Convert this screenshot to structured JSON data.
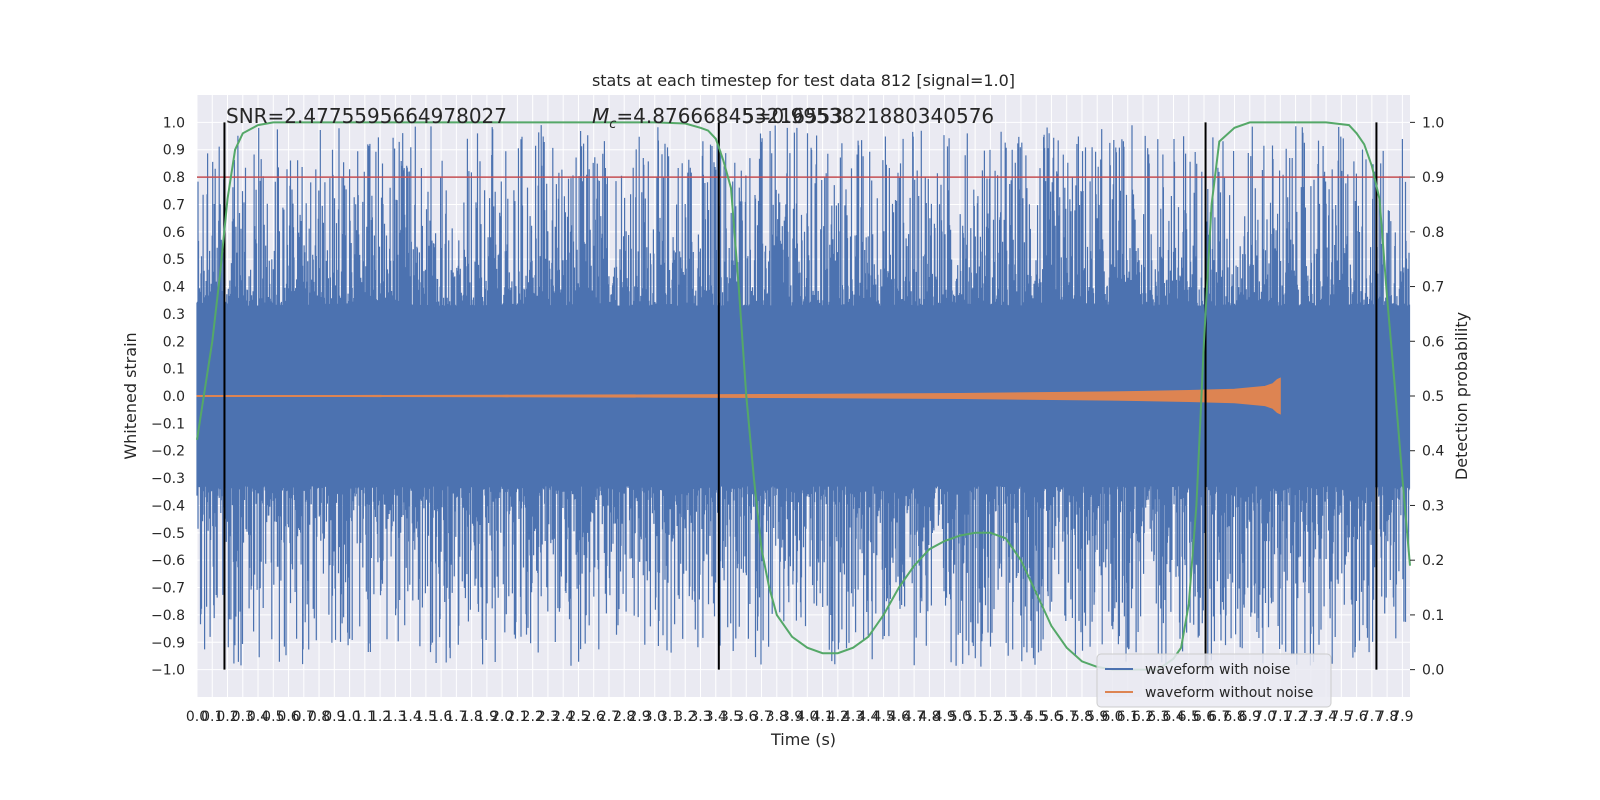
{
  "chart_data": {
    "type": "line",
    "title": "stats at each timestep for test data 812 [signal=1.0]",
    "xlabel": "Time (s)",
    "ylabel": "Whitened strain",
    "y2label": "Detection probability",
    "annotations": {
      "snr": "SNR=2.4775595664978027",
      "mc_symbol": "M",
      "mc_subscript": "c",
      "mc_value": "=4.876668453216553",
      "overlap": "5=0.9953821880340576"
    },
    "xlim": [
      0.0,
      7.95
    ],
    "xticks": [
      "0.0",
      "0.1",
      "0.2",
      "0.3",
      "0.4",
      "0.5",
      "0.6",
      "0.7",
      "0.8",
      "0.9",
      "1.0",
      "1.1",
      "1.2",
      "1.3",
      "1.4",
      "1.5",
      "1.6",
      "1.7",
      "1.8",
      "1.9",
      "2.0",
      "2.1",
      "2.2",
      "2.3",
      "2.4",
      "2.5",
      "2.6",
      "2.7",
      "2.8",
      "2.9",
      "3.0",
      "3.1",
      "3.2",
      "3.3",
      "3.4",
      "3.5",
      "3.6",
      "3.7",
      "3.8",
      "3.9",
      "4.0",
      "4.1",
      "4.2",
      "4.3",
      "4.4",
      "4.5",
      "4.6",
      "4.7",
      "4.8",
      "4.9",
      "5.0",
      "5.1",
      "5.2",
      "5.3",
      "5.4",
      "5.5",
      "5.6",
      "5.7",
      "5.8",
      "5.9",
      "6.0",
      "6.1",
      "6.2",
      "6.3",
      "6.4",
      "6.5",
      "6.6",
      "6.7",
      "6.8",
      "6.9",
      "7.0",
      "7.1",
      "7.2",
      "7.3",
      "7.4",
      "7.5",
      "7.6",
      "7.7",
      "7.8",
      "7.9"
    ],
    "ylim": [
      -1.1,
      1.1
    ],
    "yticks": [
      "−1.0",
      "−0.9",
      "−0.8",
      "−0.7",
      "−0.6",
      "−0.5",
      "−0.4",
      "−0.3",
      "−0.2",
      "−0.1",
      "0.0",
      "0.1",
      "0.2",
      "0.3",
      "0.4",
      "0.5",
      "0.6",
      "0.7",
      "0.8",
      "0.9",
      "1.0"
    ],
    "y2lim": [
      -0.05,
      1.05
    ],
    "y2ticks": [
      "0.0",
      "0.1",
      "0.2",
      "0.3",
      "0.4",
      "0.5",
      "0.6",
      "0.7",
      "0.8",
      "0.9",
      "1.0"
    ],
    "threshold": {
      "value": 0.8,
      "color": "#c44e52"
    },
    "vertical_markers": [
      0.18,
      3.42,
      6.61,
      7.73
    ],
    "marker_range": [
      -1.0,
      1.0
    ],
    "series": [
      {
        "name": "waveform with noise",
        "color": "#4c72b0",
        "description": "dense noisy strain band spanning x 0.0–7.95",
        "band_core": [
          -0.33,
          0.33
        ],
        "spike_envelope": [
          -0.99,
          0.99
        ]
      },
      {
        "name": "waveform without noise",
        "color": "#dd8452",
        "x": [
          0.0,
          1.0,
          2.0,
          3.0,
          4.0,
          5.0,
          6.0,
          6.5,
          6.8,
          7.0,
          7.05,
          7.08,
          7.1
        ],
        "amplitude": [
          0.002,
          0.002,
          0.003,
          0.004,
          0.006,
          0.009,
          0.015,
          0.02,
          0.025,
          0.035,
          0.045,
          0.06,
          0.065
        ]
      },
      {
        "name": "detection probability",
        "color": "#55a868",
        "axis": "right",
        "x": [
          0.0,
          0.1,
          0.15,
          0.2,
          0.25,
          0.3,
          0.4,
          0.5,
          0.6,
          0.8,
          1.0,
          2.0,
          3.0,
          3.2,
          3.3,
          3.35,
          3.4,
          3.45,
          3.5,
          3.55,
          3.6,
          3.65,
          3.7,
          3.75,
          3.8,
          3.9,
          4.0,
          4.1,
          4.2,
          4.3,
          4.4,
          4.5,
          4.6,
          4.7,
          4.8,
          4.9,
          5.0,
          5.1,
          5.2,
          5.3,
          5.4,
          5.5,
          5.6,
          5.7,
          5.8,
          5.9,
          6.0,
          6.1,
          6.2,
          6.3,
          6.4,
          6.45,
          6.5,
          6.55,
          6.6,
          6.65,
          6.7,
          6.8,
          6.9,
          7.0,
          7.4,
          7.55,
          7.6,
          7.65,
          7.7,
          7.75,
          7.8,
          7.85,
          7.9,
          7.95
        ],
        "y": [
          0.42,
          0.6,
          0.72,
          0.86,
          0.95,
          0.98,
          0.995,
          1.0,
          1.0,
          1.0,
          1.0,
          1.0,
          1.0,
          0.998,
          0.99,
          0.985,
          0.97,
          0.93,
          0.88,
          0.7,
          0.5,
          0.35,
          0.22,
          0.15,
          0.1,
          0.06,
          0.04,
          0.03,
          0.03,
          0.04,
          0.06,
          0.1,
          0.15,
          0.19,
          0.22,
          0.235,
          0.245,
          0.25,
          0.25,
          0.24,
          0.2,
          0.14,
          0.08,
          0.04,
          0.015,
          0.005,
          0.0,
          0.0,
          0.0,
          0.0,
          0.02,
          0.04,
          0.12,
          0.3,
          0.6,
          0.85,
          0.965,
          0.99,
          1.0,
          1.0,
          1.0,
          0.995,
          0.98,
          0.96,
          0.92,
          0.86,
          0.68,
          0.52,
          0.35,
          0.19
        ]
      }
    ],
    "legend": {
      "location": "lower-right",
      "entries": [
        {
          "label": "waveform with noise",
          "color": "#4c72b0"
        },
        {
          "label": "waveform without noise",
          "color": "#dd8452"
        }
      ]
    },
    "grid": true,
    "style": {
      "background": "#eaeaf2",
      "grid_color": "#ffffff",
      "marker_color": "#000000"
    }
  }
}
